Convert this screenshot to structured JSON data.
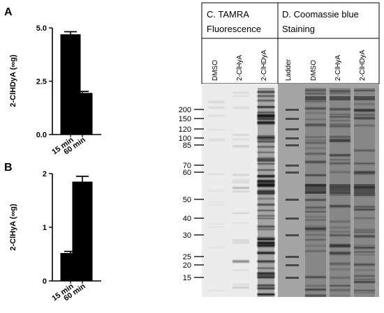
{
  "figure": {
    "panels": [
      {
        "letter": "A"
      },
      {
        "letter": "B"
      }
    ],
    "gel": {
      "tamra_header_line1": "C. TAMRA",
      "tamra_header_line2": "Fluorescence",
      "coomassie_header_line1": "D. Coomassie blue",
      "coomassie_header_line2": "Staining",
      "lanes": [
        "DMSO",
        "2-ClHyA",
        "2-ClHDyA",
        "Ladder",
        "DMSO",
        "2-ClHyA",
        "2-ClHDyA"
      ],
      "mw_markers": [
        "200",
        "150",
        "120",
        "100",
        "85",
        "70",
        "60",
        "50",
        "40",
        "30",
        "25",
        "20",
        "15"
      ],
      "colors": {
        "tamra_bg": "#ececec",
        "coomassie_bg": "#9c9c9c",
        "band_dark": "#1a1a1a"
      }
    }
  },
  "chart_data": [
    {
      "type": "bar",
      "title": "",
      "xlabel": "",
      "ylabel": "2-ClHDyA (∞g)",
      "categories": [
        "15 min",
        "60 min"
      ],
      "values": [
        4.7,
        1.95
      ],
      "errors": [
        0.12,
        0.07
      ],
      "ylim": [
        0,
        5
      ],
      "yticks": [
        "0.0",
        "2.5",
        "5.0"
      ],
      "grid": false
    },
    {
      "type": "bar",
      "title": "",
      "xlabel": "",
      "ylabel": "2-ClHyA (∞g)",
      "categories": [
        "15 min",
        "60 min"
      ],
      "values": [
        0.52,
        1.85
      ],
      "errors": [
        0.03,
        0.1
      ],
      "ylim": [
        0,
        2
      ],
      "yticks": [
        "0",
        "1",
        "2"
      ],
      "grid": false
    }
  ]
}
